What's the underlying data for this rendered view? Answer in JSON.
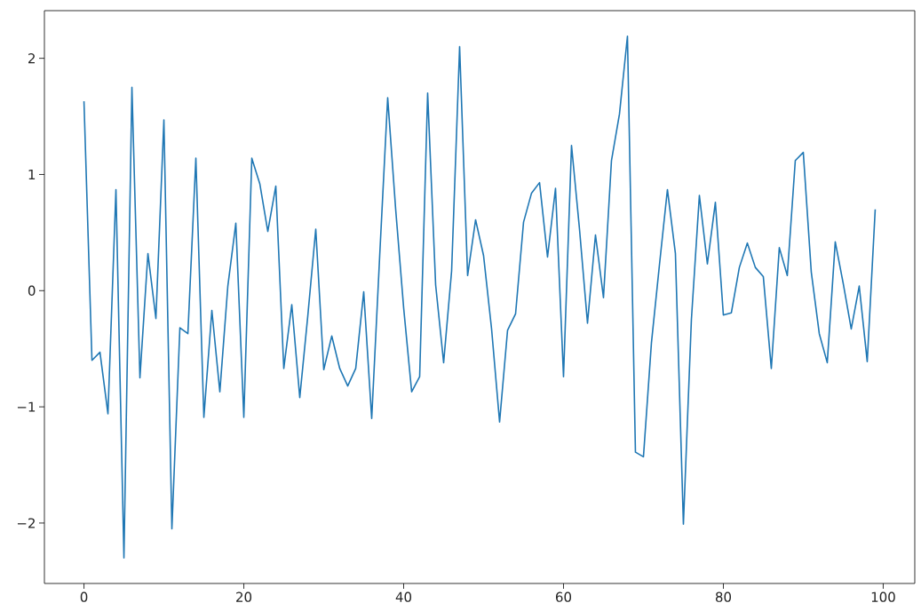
{
  "chart_data": {
    "type": "line",
    "x": [
      0,
      1,
      2,
      3,
      4,
      5,
      6,
      7,
      8,
      9,
      10,
      11,
      12,
      13,
      14,
      15,
      16,
      17,
      18,
      19,
      20,
      21,
      22,
      23,
      24,
      25,
      26,
      27,
      28,
      29,
      30,
      31,
      32,
      33,
      34,
      35,
      36,
      37,
      38,
      39,
      40,
      41,
      42,
      43,
      44,
      45,
      46,
      47,
      48,
      49,
      50,
      51,
      52,
      53,
      54,
      55,
      56,
      57,
      58,
      59,
      60,
      61,
      62,
      63,
      64,
      65,
      66,
      67,
      68,
      69,
      70,
      71,
      72,
      73,
      74,
      75,
      76,
      77,
      78,
      79,
      80,
      81,
      82,
      83,
      84,
      85,
      86,
      87,
      88,
      89,
      90,
      91,
      92,
      93,
      94,
      95,
      96,
      97,
      98,
      99
    ],
    "series": [
      {
        "color": "#1f77b4",
        "values": [
          1.63,
          -0.6,
          -0.53,
          -1.06,
          0.87,
          -2.3,
          1.75,
          -0.75,
          0.32,
          -0.24,
          1.47,
          -2.05,
          -0.32,
          -0.37,
          1.14,
          -1.09,
          -0.17,
          -0.87,
          0.04,
          0.58,
          -1.09,
          1.14,
          0.92,
          0.51,
          0.9,
          -0.67,
          -0.12,
          -0.92,
          -0.22,
          0.53,
          -0.68,
          -0.39,
          -0.67,
          -0.82,
          -0.67,
          -0.01,
          -1.1,
          0.3,
          1.66,
          0.7,
          -0.15,
          -0.87,
          -0.74,
          1.7,
          0.05,
          -0.62,
          0.17,
          2.1,
          0.13,
          0.61,
          0.3,
          -0.33,
          -1.13,
          -0.34,
          -0.2,
          0.59,
          0.84,
          0.93,
          0.29,
          0.88,
          -0.74,
          1.25,
          0.53,
          -0.28,
          0.48,
          -0.06,
          1.12,
          1.52,
          2.19,
          -1.39,
          -1.43,
          -0.45,
          0.22,
          0.87,
          0.32,
          -2.01,
          -0.25,
          0.82,
          0.23,
          0.76,
          -0.21,
          -0.19,
          0.2,
          0.41,
          0.2,
          0.12,
          -0.67,
          0.37,
          0.13,
          1.12,
          1.19,
          0.16,
          -0.37,
          -0.62,
          0.42,
          0.06,
          -0.33,
          0.04,
          -0.61,
          0.7
        ]
      }
    ],
    "xlim": [
      -4.95,
      103.95
    ],
    "ylim": [
      -2.52,
      2.41
    ],
    "xticks": [
      0,
      20,
      40,
      60,
      80,
      100
    ],
    "yticks": [
      {
        "value": -2,
        "label": "−2"
      },
      {
        "value": -1,
        "label": "−1"
      },
      0,
      1,
      2
    ],
    "grid": false
  }
}
